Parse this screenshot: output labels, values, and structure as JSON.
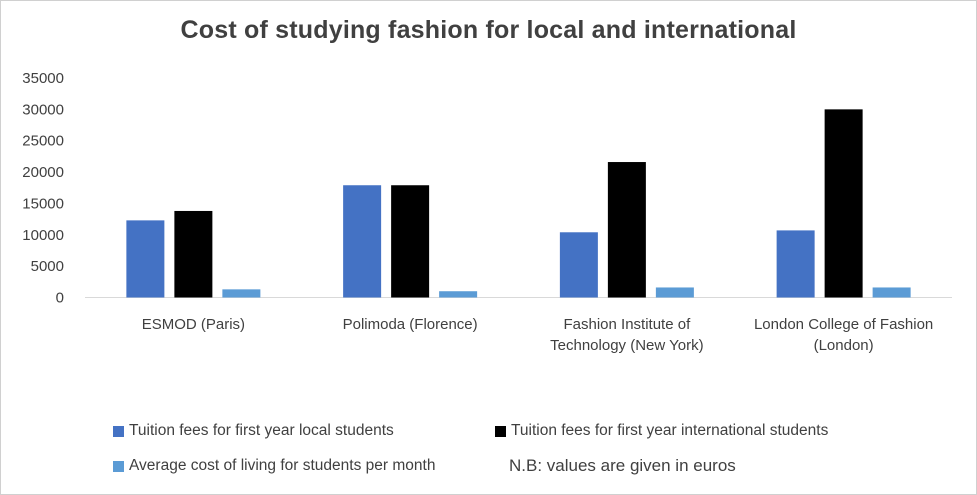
{
  "chart_data": {
    "type": "bar",
    "title": "Cost of studying fashion for local and international",
    "categories": [
      [
        "ESMOD (Paris)"
      ],
      [
        "Polimoda (Florence)"
      ],
      [
        "Fashion Institute of",
        "Technology (New York)"
      ],
      [
        "London College of Fashion",
        "(London)"
      ]
    ],
    "series": [
      {
        "name": "Tuition fees for first year local students",
        "color": "#4472c4",
        "values": [
          12300,
          17900,
          10400,
          10700
        ]
      },
      {
        "name": "Tuition fees for first year international students",
        "color": "#000000",
        "values": [
          13800,
          17900,
          21600,
          30000
        ]
      },
      {
        "name": "Average cost of living for students per month",
        "color": "#5b9bd5",
        "values": [
          1300,
          1000,
          1600,
          1600
        ]
      }
    ],
    "ylim": [
      0,
      35000
    ],
    "yticks": [
      0,
      5000,
      10000,
      15000,
      20000,
      25000,
      30000,
      35000
    ],
    "grid": false,
    "legend_position": "bottom",
    "note": "N.B: values are given in euros"
  }
}
